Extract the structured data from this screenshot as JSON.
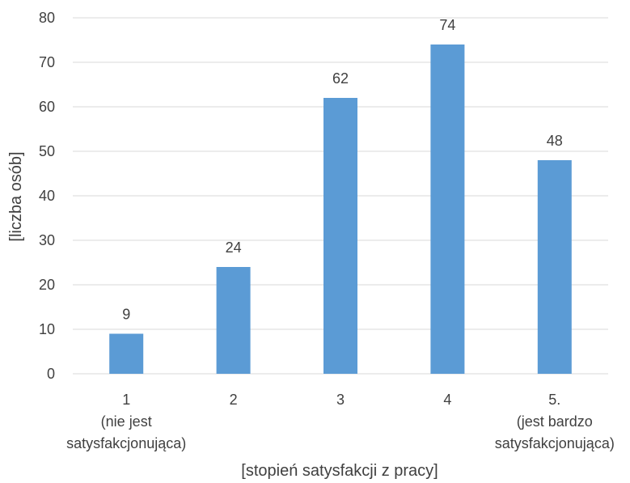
{
  "chart_data": {
    "type": "bar",
    "categories": [
      [
        "1",
        "(nie jest",
        "satysfakcjonująca)"
      ],
      [
        "2"
      ],
      [
        "3"
      ],
      [
        "4"
      ],
      [
        "5.",
        "(jest bardzo",
        "satysfakcjonująca)"
      ]
    ],
    "values": [
      9,
      24,
      62,
      74,
      48
    ],
    "data_labels": [
      "9",
      "24",
      "62",
      "74",
      "48"
    ],
    "xlabel": "[stopień satysfakcji z pracy]",
    "ylabel": "[liczba osób]",
    "ylim": [
      0,
      80
    ],
    "yticks": [
      0,
      10,
      20,
      30,
      40,
      50,
      60,
      70,
      80
    ],
    "grid": true,
    "legend": "none",
    "colors": {
      "bar": "#5b9bd5",
      "grid": "#d9d9d9",
      "text": "#404040"
    }
  }
}
